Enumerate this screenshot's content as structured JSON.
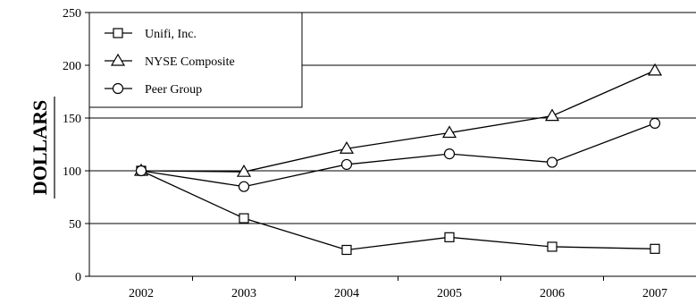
{
  "chart_data": {
    "type": "line",
    "title": "",
    "xlabel": "",
    "ylabel": "DOLLARS",
    "categories": [
      "2002",
      "2003",
      "2004",
      "2005",
      "2006",
      "2007"
    ],
    "ylim": [
      0,
      250
    ],
    "yticks": [
      0,
      50,
      100,
      150,
      200,
      250
    ],
    "grid": "horizontal",
    "legend_position": "top-left",
    "series": [
      {
        "name": "Unifi, Inc.",
        "marker": "square",
        "values": [
          100,
          55,
          25,
          37,
          28,
          26
        ]
      },
      {
        "name": "NYSE Composite",
        "marker": "triangle",
        "values": [
          100,
          99,
          121,
          136,
          152,
          195
        ]
      },
      {
        "name": "Peer Group",
        "marker": "circle",
        "values": [
          100,
          85,
          106,
          116,
          108,
          145
        ]
      }
    ],
    "colors": {
      "line": "#000000",
      "marker_fill": "#ffffff",
      "background": "#ffffff"
    }
  }
}
